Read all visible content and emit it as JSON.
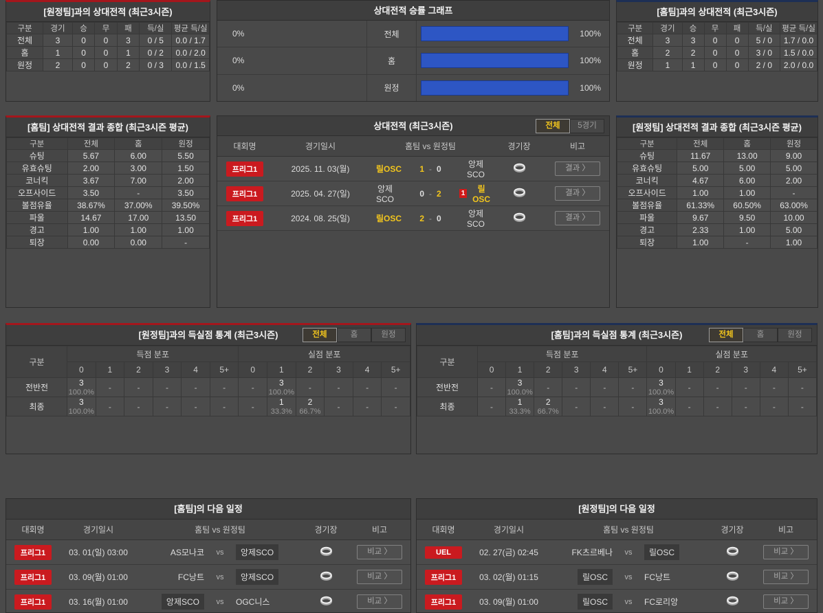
{
  "colors": {
    "red": "#a4161c",
    "navy": "#1d2f55",
    "badge_red": "#ca1a1f",
    "yellow": "#f2c51d",
    "bar_blue": "#2d56c4"
  },
  "top_left": {
    "title": "[원정팀]과의 상대전적 (최근3시즌)",
    "columns": [
      "구분",
      "경기",
      "승",
      "무",
      "패",
      "득/실",
      "평균 득/실"
    ],
    "rows": [
      {
        "label": "전체",
        "values": [
          "3",
          "0",
          "0",
          "3",
          "0 / 5",
          "0.0 / 1.7"
        ]
      },
      {
        "label": "홈",
        "values": [
          "1",
          "0",
          "0",
          "1",
          "0 / 2",
          "0.0 / 2.0"
        ]
      },
      {
        "label": "원정",
        "values": [
          "2",
          "0",
          "0",
          "2",
          "0 / 3",
          "0.0 / 1.5"
        ]
      }
    ]
  },
  "win_graph": {
    "title": "상대전적 승률 그래프",
    "rows": [
      {
        "label": "전체",
        "left": {
          "label": "0%",
          "value": 0
        },
        "right": {
          "label": "100%",
          "value": 100
        }
      },
      {
        "label": "홈",
        "left": {
          "label": "0%",
          "value": 0
        },
        "right": {
          "label": "100%",
          "value": 100
        }
      },
      {
        "label": "원정",
        "left": {
          "label": "0%",
          "value": 0
        },
        "right": {
          "label": "100%",
          "value": 100
        }
      }
    ]
  },
  "top_right": {
    "title": "[홈팀]과의 상대전적 (최근3시즌)",
    "columns": [
      "구분",
      "경기",
      "승",
      "무",
      "패",
      "득/실",
      "평균 득/실"
    ],
    "rows": [
      {
        "label": "전체",
        "values": [
          "3",
          "3",
          "0",
          "0",
          "5 / 0",
          "1.7 / 0.0"
        ]
      },
      {
        "label": "홈",
        "values": [
          "2",
          "2",
          "0",
          "0",
          "3 / 0",
          "1.5 / 0.0"
        ]
      },
      {
        "label": "원정",
        "values": [
          "1",
          "1",
          "0",
          "0",
          "2 / 0",
          "2.0 / 0.0"
        ]
      }
    ]
  },
  "home_summary": {
    "title": "[홈팀] 상대전적 결과 종합 (최근3시즌 평균)",
    "columns": [
      "구분",
      "전체",
      "홈",
      "원정"
    ],
    "rows": [
      {
        "label": "슈팅",
        "values": [
          "5.67",
          "6.00",
          "5.50"
        ]
      },
      {
        "label": "유효슈팅",
        "values": [
          "2.00",
          "3.00",
          "1.50"
        ]
      },
      {
        "label": "코너킥",
        "values": [
          "3.67",
          "7.00",
          "2.00"
        ]
      },
      {
        "label": "오프사이드",
        "values": [
          "3.50",
          "-",
          "3.50"
        ]
      },
      {
        "label": "볼점유율",
        "values": [
          "38.67%",
          "37.00%",
          "39.50%"
        ]
      },
      {
        "label": "파울",
        "values": [
          "14.67",
          "17.00",
          "13.50"
        ]
      },
      {
        "label": "경고",
        "values": [
          "1.00",
          "1.00",
          "1.00"
        ]
      },
      {
        "label": "퇴장",
        "values": [
          "0.00",
          "0.00",
          "-"
        ]
      }
    ]
  },
  "away_summary": {
    "title": "[원정팀] 상대전적 결과 종합 (최근3시즌 평균)",
    "columns": [
      "구분",
      "전체",
      "홈",
      "원정"
    ],
    "rows": [
      {
        "label": "슈팅",
        "values": [
          "11.67",
          "13.00",
          "9.00"
        ]
      },
      {
        "label": "유효슈팅",
        "values": [
          "5.00",
          "5.00",
          "5.00"
        ]
      },
      {
        "label": "코너킥",
        "values": [
          "4.67",
          "6.00",
          "2.00"
        ]
      },
      {
        "label": "오프사이드",
        "values": [
          "1.00",
          "1.00",
          "-"
        ]
      },
      {
        "label": "볼점유율",
        "values": [
          "61.33%",
          "60.50%",
          "63.00%"
        ]
      },
      {
        "label": "파울",
        "values": [
          "9.67",
          "9.50",
          "10.00"
        ]
      },
      {
        "label": "경고",
        "values": [
          "2.33",
          "1.00",
          "5.00"
        ]
      },
      {
        "label": "퇴장",
        "values": [
          "1.00",
          "-",
          "1.00"
        ]
      }
    ]
  },
  "h2h": {
    "title": "상대전적 (최근3시즌)",
    "tabs": [
      "전체",
      "5경기"
    ],
    "active_tab": "전체",
    "columns": [
      "대회명",
      "경기일시",
      "홈팀  vs  원정팀",
      "경기장",
      "비고"
    ],
    "button_label": "결과 〉",
    "matches": [
      {
        "league": "프리그1",
        "date": "2025. 11. 03(월)",
        "home": "릴OSC",
        "away": "앙제SCO",
        "home_score": "1",
        "away_score": "0",
        "winner": "home",
        "red_card": null
      },
      {
        "league": "프리그1",
        "date": "2025. 04. 27(일)",
        "home": "앙제SCO",
        "away": "릴OSC",
        "home_score": "0",
        "away_score": "2",
        "winner": "away",
        "red_card": {
          "side": "away",
          "count": "1"
        }
      },
      {
        "league": "프리그1",
        "date": "2024. 08. 25(일)",
        "home": "릴OSC",
        "away": "앙제SCO",
        "home_score": "2",
        "away_score": "0",
        "winner": "home",
        "red_card": null
      }
    ]
  },
  "goal_stats_left": {
    "title": "[원정팀]과의 득실점 통계 (최근3시즌)",
    "tabs": [
      "전체",
      "홈",
      "원정"
    ],
    "active_tab": "전체",
    "row_header": "구분",
    "group_scored": "득점 분포",
    "group_conceded": "실점 분포",
    "score_cols": [
      "0",
      "1",
      "2",
      "3",
      "4",
      "5+"
    ],
    "rows": [
      {
        "label": "전반전",
        "scored": [
          {
            "n": "3",
            "pct": "100.0%"
          },
          "-",
          "-",
          "-",
          "-",
          "-"
        ],
        "conceded": [
          "-",
          {
            "n": "3",
            "pct": "100.0%"
          },
          "-",
          "-",
          "-",
          "-"
        ]
      },
      {
        "label": "최종",
        "scored": [
          {
            "n": "3",
            "pct": "100.0%"
          },
          "-",
          "-",
          "-",
          "-",
          "-"
        ],
        "conceded": [
          "-",
          {
            "n": "1",
            "pct": "33.3%"
          },
          {
            "n": "2",
            "pct": "66.7%"
          },
          "-",
          "-",
          "-"
        ]
      }
    ]
  },
  "goal_stats_right": {
    "title": "[홈팀]과의 득실점 통계 (최근3시즌)",
    "tabs": [
      "전체",
      "홈",
      "원정"
    ],
    "active_tab": "전체",
    "row_header": "구분",
    "group_scored": "득점 분포",
    "group_conceded": "실점 분포",
    "score_cols": [
      "0",
      "1",
      "2",
      "3",
      "4",
      "5+"
    ],
    "rows": [
      {
        "label": "전반전",
        "scored": [
          "-",
          {
            "n": "3",
            "pct": "100.0%"
          },
          "-",
          "-",
          "-",
          "-"
        ],
        "conceded": [
          {
            "n": "3",
            "pct": "100.0%"
          },
          "-",
          "-",
          "-",
          "-",
          "-"
        ]
      },
      {
        "label": "최종",
        "scored": [
          "-",
          {
            "n": "1",
            "pct": "33.3%"
          },
          {
            "n": "2",
            "pct": "66.7%"
          },
          "-",
          "-",
          "-"
        ],
        "conceded": [
          {
            "n": "3",
            "pct": "100.0%"
          },
          "-",
          "-",
          "-",
          "-",
          "-"
        ]
      }
    ]
  },
  "schedule_left": {
    "title": "[홈팀]의 다음 일정",
    "columns": [
      "대회명",
      "경기일시",
      "홈팀  vs  원정팀",
      "경기장",
      "비고"
    ],
    "vs_label": "vs",
    "button_label": "비교 〉",
    "matches": [
      {
        "league": "프리그1",
        "date": "03. 01(일) 03:00",
        "home": "AS모나코",
        "away": "앙제SCO",
        "highlight": "away"
      },
      {
        "league": "프리그1",
        "date": "03. 09(월) 01:00",
        "home": "FC낭트",
        "away": "앙제SCO",
        "highlight": "away"
      },
      {
        "league": "프리그1",
        "date": "03. 16(월) 01:00",
        "home": "앙제SCO",
        "away": "OGC니스",
        "highlight": "home"
      }
    ]
  },
  "schedule_right": {
    "title": "[원정팀]의 다음 일정",
    "columns": [
      "대회명",
      "경기일시",
      "홈팀  vs  원정팀",
      "경기장",
      "비고"
    ],
    "vs_label": "vs",
    "button_label": "비교 〉",
    "matches": [
      {
        "league": "UEL",
        "date": "02. 27(금) 02:45",
        "home": "FK츠르베나",
        "away": "릴OSC",
        "highlight": "away"
      },
      {
        "league": "프리그1",
        "date": "03. 02(월) 01:15",
        "home": "릴OSC",
        "away": "FC낭트",
        "highlight": "home"
      },
      {
        "league": "프리그1",
        "date": "03. 09(월) 01:00",
        "home": "릴OSC",
        "away": "FC로리앙",
        "highlight": "home"
      }
    ]
  }
}
